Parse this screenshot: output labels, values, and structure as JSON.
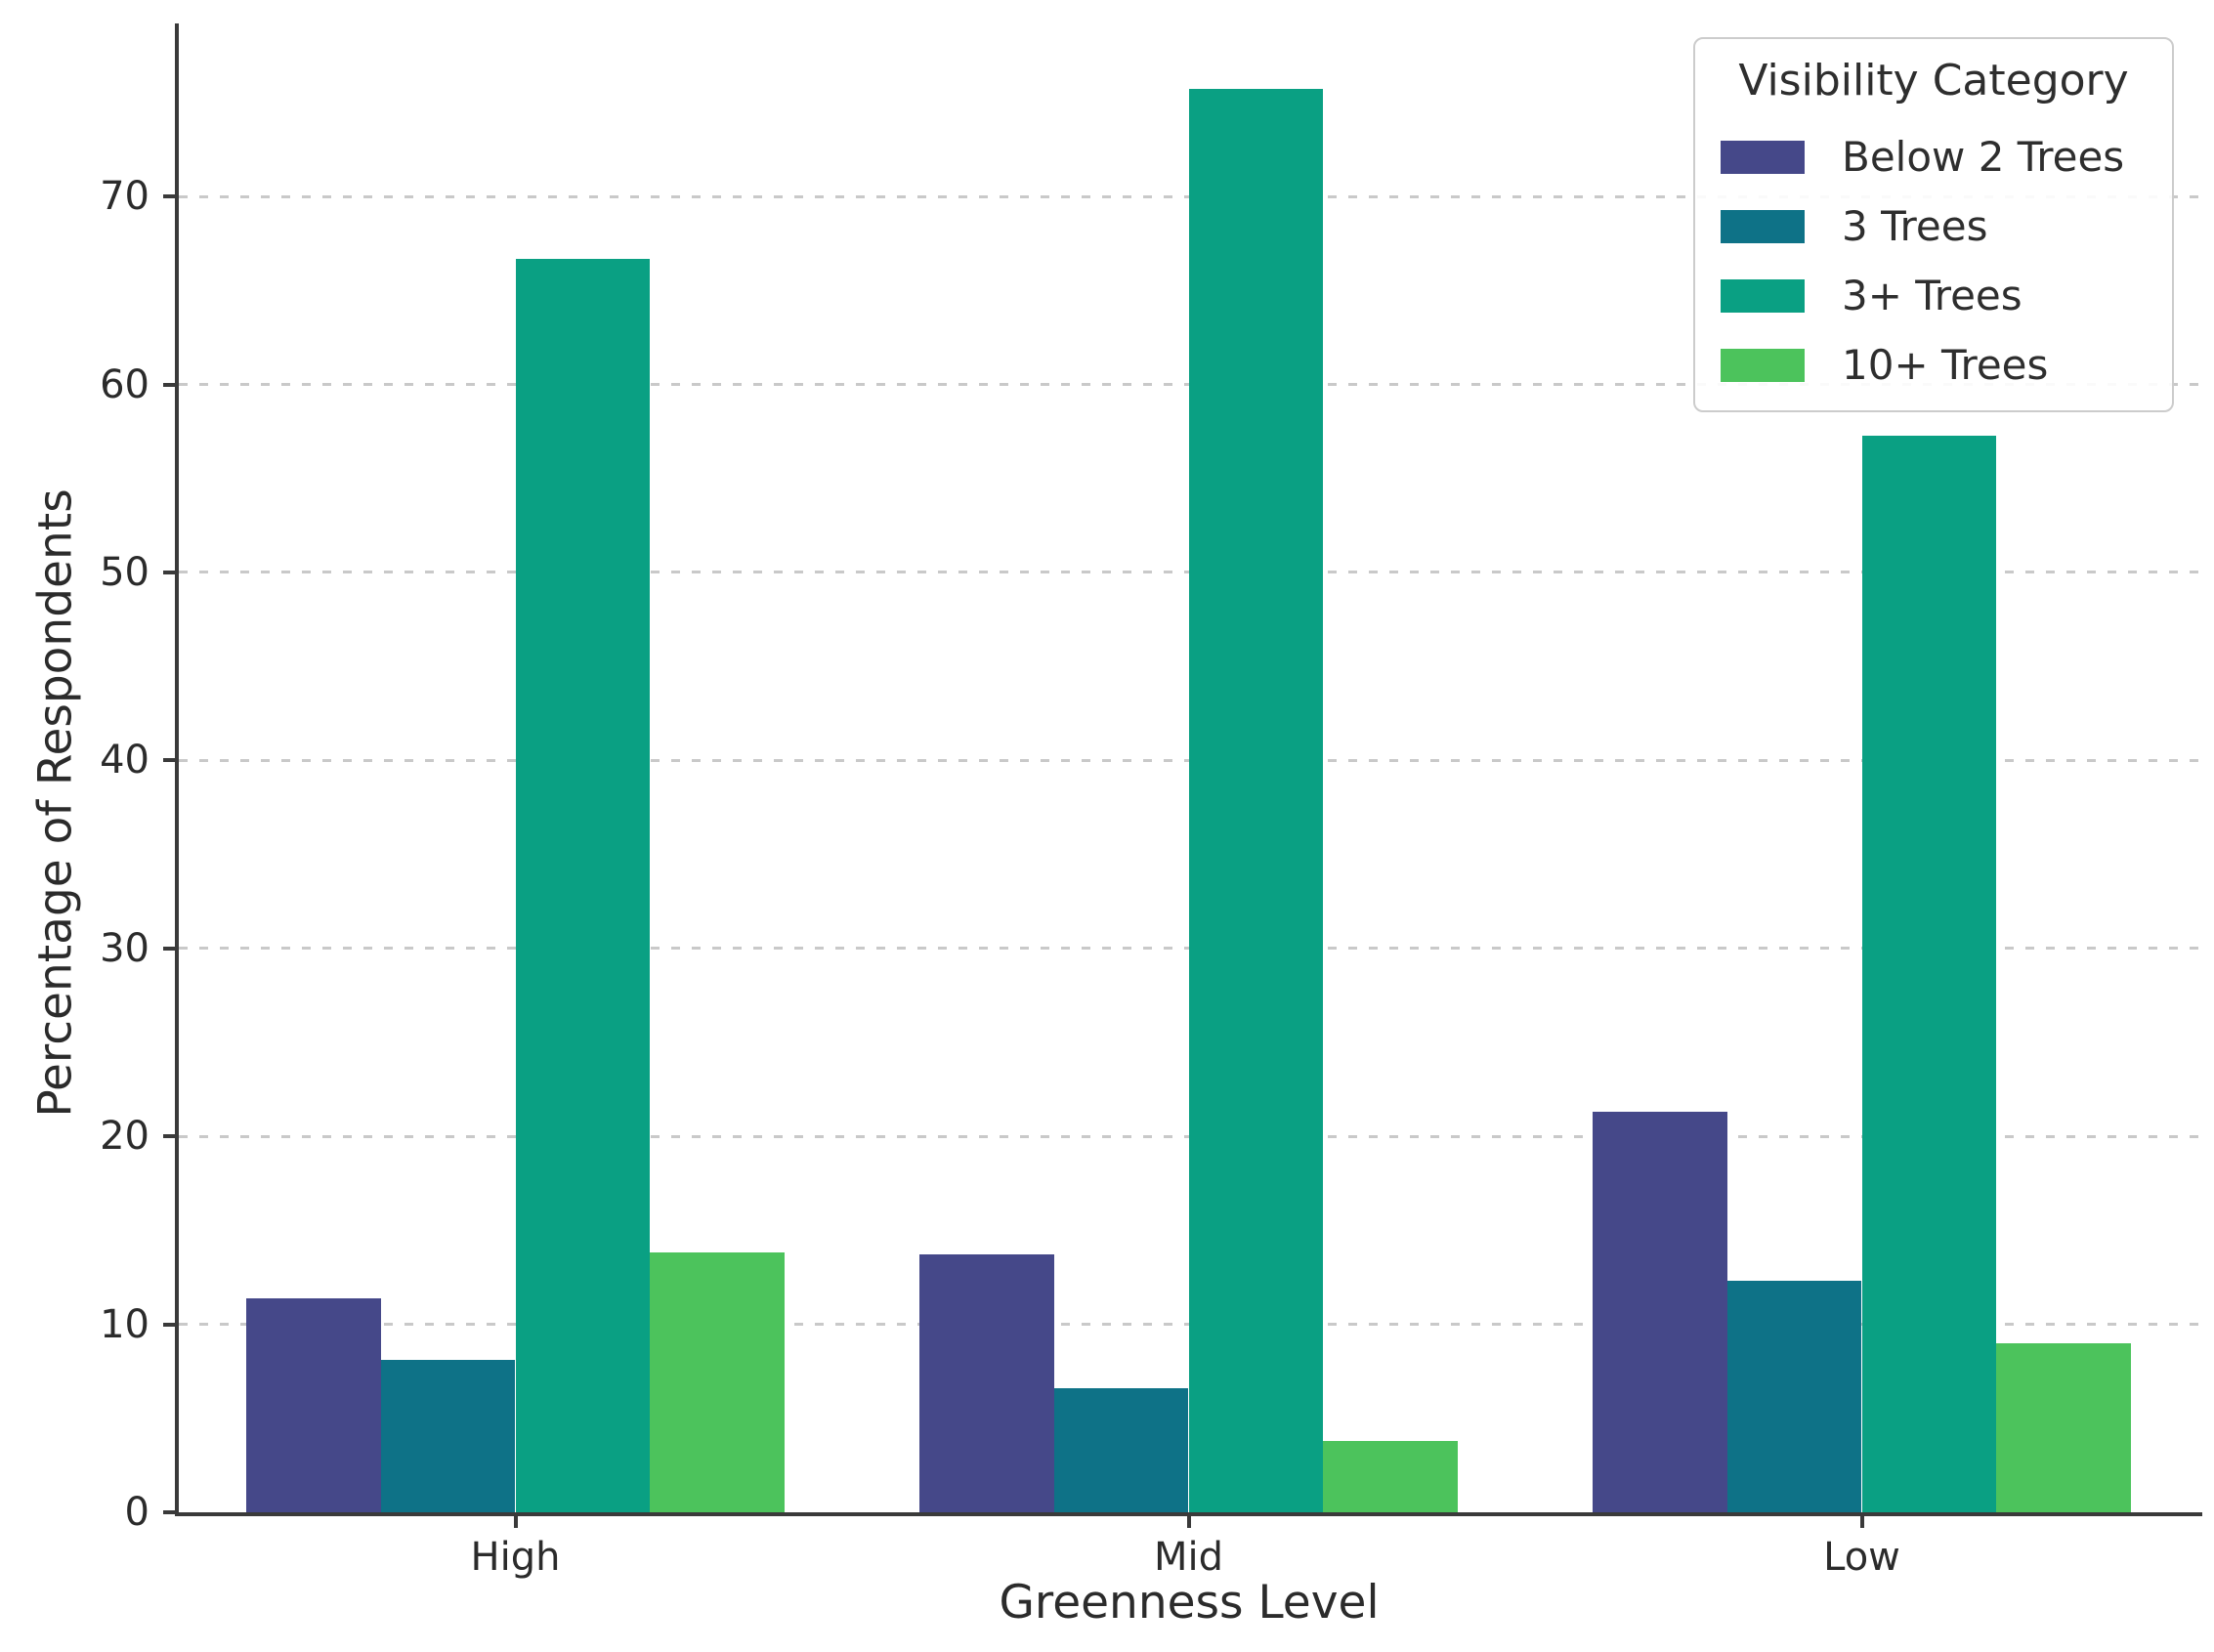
{
  "chart_data": {
    "type": "bar",
    "title": "",
    "xlabel": "Greenness Level",
    "ylabel": "Percentage of Respondents",
    "categories": [
      "High",
      "Mid",
      "Low"
    ],
    "legend_title": "Visibility Category",
    "legend_position": "upper right",
    "grid": "horizontal dotted",
    "yticks": [
      0,
      10,
      20,
      30,
      40,
      50,
      60,
      70
    ],
    "ylim": [
      0,
      79
    ],
    "series": [
      {
        "name": "Below 2 Trees",
        "color": "#454889",
        "values": [
          11.4,
          13.7,
          21.3
        ]
      },
      {
        "name": "3 Trees",
        "color": "#0E7287",
        "values": [
          8.1,
          6.6,
          12.3
        ]
      },
      {
        "name": "3+ Trees",
        "color": "#0AA083",
        "values": [
          66.7,
          75.7,
          57.3
        ]
      },
      {
        "name": "10+ Trees",
        "color": "#4CC35C",
        "values": [
          13.8,
          3.8,
          9.0
        ]
      }
    ]
  }
}
